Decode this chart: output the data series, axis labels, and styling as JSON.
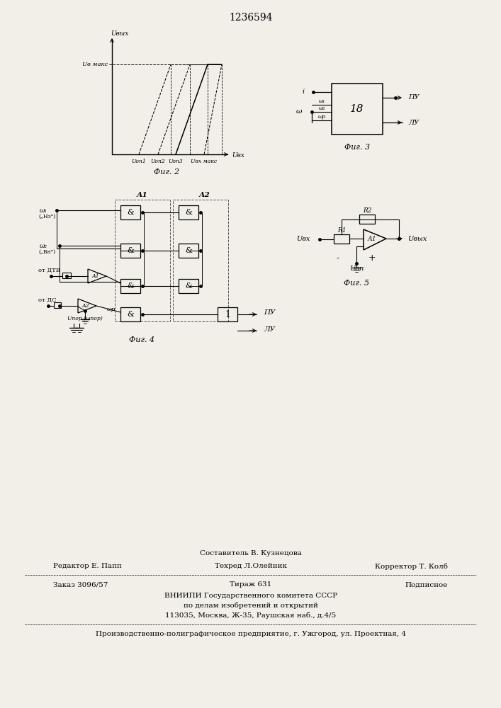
{
  "title": "1236594",
  "bg_color": "#f2efe9",
  "footer": {
    "line1_center": "Составитель В. Кузнецова",
    "line2_left": "Редактор Е. Папп",
    "line2_center": "Техред Л.Олейник",
    "line2_right": "Корректор Т. Колб",
    "line3_left": "Заказ 3096/57",
    "line3_center": "Тираж 631",
    "line3_right": "Подписное",
    "line4": "ВНИИПИ Государственного комитета СССР",
    "line5": "по делам изобретений и открытий",
    "line6": "113035, Москва, Ж-35, Раушская наб., д.4/5",
    "line7": "Производственно-полиграфическое предприятие, г. Ужгород, ул. Проектная, 4"
  }
}
